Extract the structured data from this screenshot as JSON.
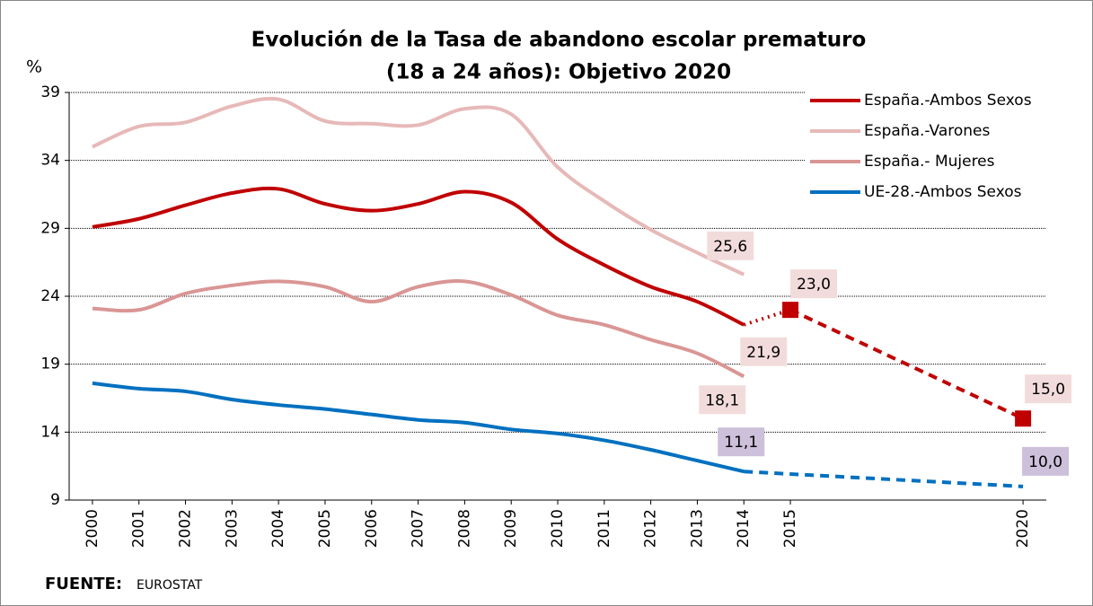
{
  "chart_data": {
    "type": "line",
    "title_lines": [
      "Evolución de la Tasa de abandono escolar prematuro",
      "(18 a 24 años): Objetivo 2020"
    ],
    "y_label": "%",
    "source_label": "FUENTE:",
    "source": "EUROSTAT",
    "xlim": [
      1999.5,
      2020.5
    ],
    "xticks": [
      2000,
      2001,
      2002,
      2003,
      2004,
      2005,
      2006,
      2007,
      2008,
      2009,
      2010,
      2011,
      2012,
      2013,
      2014,
      2015,
      2020
    ],
    "ylim": [
      9,
      39
    ],
    "yticks": [
      9,
      14,
      19,
      24,
      29,
      34,
      39
    ],
    "grid": true,
    "legend": "top-right",
    "projection_from": 2014,
    "series": [
      {
        "name": "España.-Ambos Sexos",
        "color": "#c00000",
        "label_color": "#f2dcdb",
        "marker": "square",
        "projection_dash": [
          "dotted",
          "dashed"
        ],
        "x": [
          2000,
          2001,
          2002,
          2003,
          2004,
          2005,
          2006,
          2007,
          2008,
          2009,
          2010,
          2011,
          2012,
          2013,
          2014,
          2015,
          2020
        ],
        "values": [
          29.1,
          29.7,
          30.7,
          31.6,
          31.9,
          30.8,
          30.3,
          30.8,
          31.7,
          30.9,
          28.2,
          26.3,
          24.7,
          23.6,
          21.9,
          23.0,
          15.0
        ],
        "value_labels": [
          null,
          null,
          null,
          null,
          null,
          null,
          null,
          null,
          null,
          null,
          null,
          null,
          null,
          null,
          "21,9",
          "23,0",
          "15,0"
        ]
      },
      {
        "name": "España.-Varones",
        "color": "#e6b9b8",
        "label_color": "#f2dcdb",
        "x": [
          2000,
          2001,
          2002,
          2003,
          2004,
          2005,
          2006,
          2007,
          2008,
          2009,
          2010,
          2011,
          2012,
          2013,
          2014
        ],
        "values": [
          35.0,
          36.5,
          36.8,
          38.0,
          38.5,
          36.9,
          36.7,
          36.6,
          37.8,
          37.4,
          33.5,
          31.0,
          28.9,
          27.2,
          25.6
        ],
        "value_labels": [
          null,
          null,
          null,
          null,
          null,
          null,
          null,
          null,
          null,
          null,
          null,
          null,
          null,
          null,
          "25,6"
        ]
      },
      {
        "name": "España.- Mujeres",
        "color": "#d99694",
        "label_color": "#f2dcdb",
        "x": [
          2000,
          2001,
          2002,
          2003,
          2004,
          2005,
          2006,
          2007,
          2008,
          2009,
          2010,
          2011,
          2012,
          2013,
          2014
        ],
        "values": [
          23.1,
          23.0,
          24.2,
          24.8,
          25.1,
          24.7,
          23.6,
          24.7,
          25.1,
          24.1,
          22.6,
          21.9,
          20.8,
          19.8,
          18.1
        ],
        "value_labels": [
          null,
          null,
          null,
          null,
          null,
          null,
          null,
          null,
          null,
          null,
          null,
          null,
          null,
          null,
          "18,1"
        ]
      },
      {
        "name": "UE-28.-Ambos Sexos",
        "color": "#0070c0",
        "label_color": "#ccc0da",
        "projection_dash": [
          "dashed"
        ],
        "x": [
          2000,
          2001,
          2002,
          2003,
          2004,
          2005,
          2006,
          2007,
          2008,
          2009,
          2010,
          2011,
          2012,
          2013,
          2014,
          2020
        ],
        "values": [
          17.6,
          17.2,
          17.0,
          16.4,
          16.0,
          15.7,
          15.3,
          14.9,
          14.7,
          14.2,
          13.9,
          13.4,
          12.7,
          11.9,
          11.1,
          10.0
        ],
        "value_labels": [
          null,
          null,
          null,
          null,
          null,
          null,
          null,
          null,
          null,
          null,
          null,
          null,
          null,
          null,
          "11,1",
          "10,0"
        ]
      }
    ]
  }
}
